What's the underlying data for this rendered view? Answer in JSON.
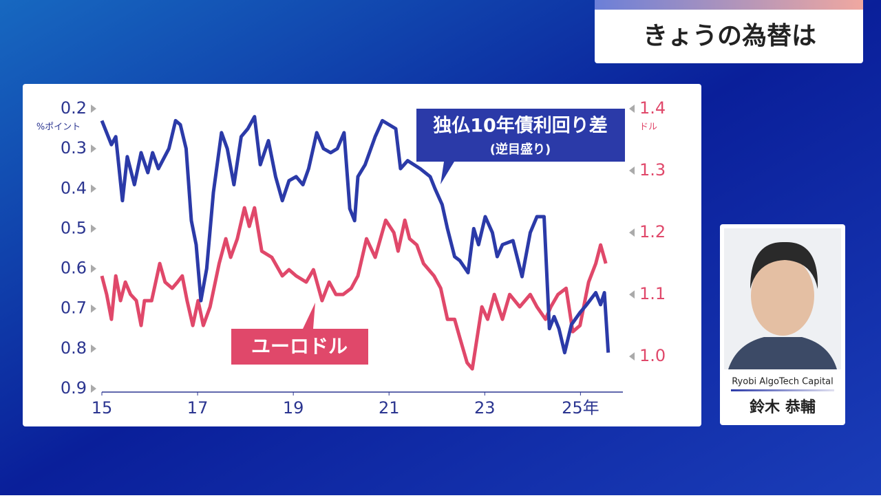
{
  "header": {
    "title": "きょうの為替は"
  },
  "chart_data": {
    "type": "line",
    "y_label": "%ポイント",
    "y2_label": "ドル",
    "xlim": [
      15,
      25.8
    ],
    "xticks": [
      15,
      17,
      19,
      21,
      23,
      {
        "value": 25,
        "label": "25年"
      }
    ],
    "ylim": [
      0.2,
      0.9
    ],
    "y_inverted": true,
    "yticks": [
      0.2,
      0.3,
      0.4,
      0.5,
      0.6,
      0.7,
      0.8,
      0.9
    ],
    "y2lim": [
      0.948,
      1.4
    ],
    "y2ticks": [
      1.4,
      1.3,
      1.2,
      1.1,
      {
        "value": 1,
        "label": "1.0"
      }
    ],
    "series": [
      {
        "name": "独仏10年債利回り差",
        "note": "(逆目盛り)",
        "color": "#2b3aa8",
        "x": [
          15.0,
          15.2,
          15.29,
          15.43,
          15.53,
          15.68,
          15.82,
          15.96,
          16.06,
          16.18,
          16.4,
          16.54,
          16.64,
          16.76,
          16.87,
          16.97,
          17.07,
          17.19,
          17.33,
          17.5,
          17.62,
          17.76,
          17.91,
          18.05,
          18.19,
          18.31,
          18.48,
          18.63,
          18.77,
          18.91,
          19.06,
          19.2,
          19.32,
          19.49,
          19.63,
          19.78,
          19.92,
          20.06,
          20.18,
          20.28,
          20.35,
          20.5,
          20.71,
          20.86,
          21.0,
          21.14,
          21.24,
          21.39,
          21.65,
          21.86,
          21.96,
          22.11,
          22.22,
          22.37,
          22.48,
          22.65,
          22.77,
          22.87,
          23.01,
          23.16,
          23.26,
          23.37,
          23.59,
          23.78,
          23.95,
          24.09,
          24.24,
          24.35,
          24.45,
          24.55,
          24.67,
          24.81,
          24.99,
          25.13,
          25.32,
          25.42,
          25.5,
          25.58
        ],
        "values": [
          0.23,
          0.29,
          0.27,
          0.43,
          0.32,
          0.39,
          0.31,
          0.36,
          0.31,
          0.35,
          0.3,
          0.23,
          0.24,
          0.3,
          0.48,
          0.54,
          0.68,
          0.6,
          0.41,
          0.26,
          0.3,
          0.39,
          0.27,
          0.25,
          0.22,
          0.34,
          0.28,
          0.37,
          0.43,
          0.38,
          0.37,
          0.39,
          0.35,
          0.26,
          0.3,
          0.31,
          0.3,
          0.26,
          0.45,
          0.48,
          0.37,
          0.34,
          0.27,
          0.23,
          0.24,
          0.25,
          0.35,
          0.33,
          0.35,
          0.37,
          0.4,
          0.44,
          0.5,
          0.57,
          0.58,
          0.61,
          0.5,
          0.54,
          0.47,
          0.51,
          0.57,
          0.54,
          0.53,
          0.62,
          0.51,
          0.47,
          0.47,
          0.75,
          0.72,
          0.75,
          0.81,
          0.74,
          0.71,
          0.69,
          0.66,
          0.69,
          0.66,
          0.81
        ]
      },
      {
        "name": "ユーロドル",
        "color": "#e0486a",
        "axis": "y2",
        "x": [
          15.0,
          15.1,
          15.2,
          15.29,
          15.39,
          15.49,
          15.6,
          15.72,
          15.82,
          15.89,
          16.04,
          16.21,
          16.32,
          16.47,
          16.58,
          16.68,
          16.78,
          16.9,
          17.01,
          17.12,
          17.26,
          17.45,
          17.59,
          17.69,
          17.83,
          17.98,
          18.08,
          18.19,
          18.34,
          18.55,
          18.77,
          18.91,
          19.06,
          19.27,
          19.42,
          19.6,
          19.75,
          19.89,
          20.04,
          20.21,
          20.35,
          20.53,
          20.71,
          20.93,
          21.1,
          21.19,
          21.33,
          21.43,
          21.58,
          21.72,
          21.94,
          22.08,
          22.22,
          22.37,
          22.48,
          22.63,
          22.74,
          22.94,
          23.06,
          23.2,
          23.37,
          23.52,
          23.73,
          23.95,
          24.09,
          24.27,
          24.38,
          24.53,
          24.7,
          24.84,
          24.99,
          25.17,
          25.32,
          25.42,
          25.53
        ],
        "values": [
          1.13,
          1.1,
          1.06,
          1.13,
          1.09,
          1.12,
          1.1,
          1.09,
          1.05,
          1.09,
          1.09,
          1.15,
          1.12,
          1.11,
          1.12,
          1.13,
          1.09,
          1.05,
          1.09,
          1.05,
          1.08,
          1.15,
          1.19,
          1.16,
          1.19,
          1.24,
          1.21,
          1.24,
          1.17,
          1.16,
          1.13,
          1.14,
          1.13,
          1.12,
          1.14,
          1.09,
          1.12,
          1.1,
          1.1,
          1.11,
          1.13,
          1.19,
          1.16,
          1.22,
          1.2,
          1.17,
          1.22,
          1.19,
          1.18,
          1.15,
          1.13,
          1.11,
          1.06,
          1.06,
          1.03,
          0.99,
          0.98,
          1.08,
          1.06,
          1.1,
          1.06,
          1.1,
          1.08,
          1.1,
          1.08,
          1.06,
          1.08,
          1.1,
          1.11,
          1.04,
          1.05,
          1.12,
          1.15,
          1.18,
          1.15
        ]
      }
    ]
  },
  "person": {
    "company": "Ryobi AlgoTech Capital",
    "name": "鈴木 恭輔"
  }
}
